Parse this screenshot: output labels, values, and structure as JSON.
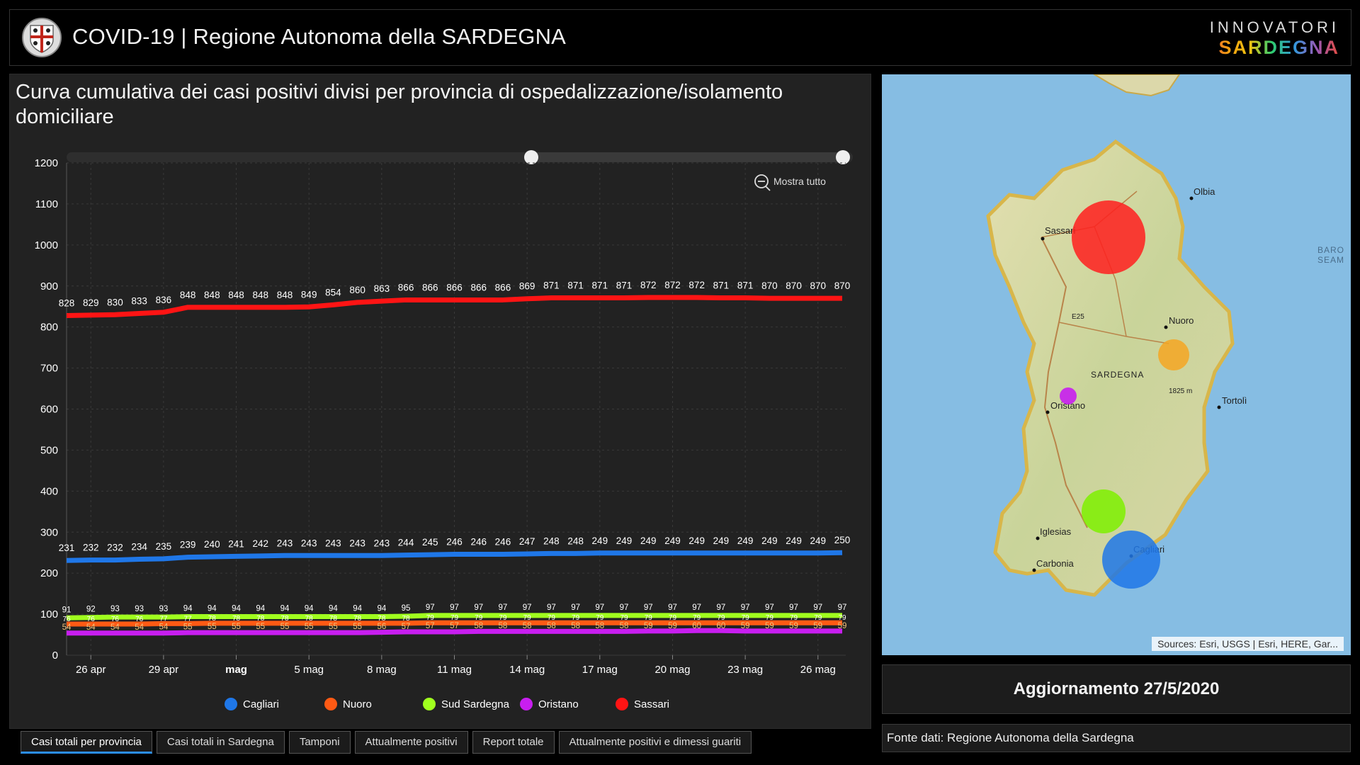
{
  "header": {
    "title": "COVID-19 | Regione Autonoma della SARDEGNA",
    "brand_top": "INNOVATORI",
    "brand_bottom": "SARDEGNA"
  },
  "chart": {
    "title": "Curva cumulativa dei casi positivi divisi per provincia di ospedalizzazione/isolamento domiciliare",
    "zoom_label": "Mostra tutto"
  },
  "chart_data": {
    "type": "line",
    "x": [
      "25 apr",
      "26 apr",
      "27 apr",
      "28 apr",
      "29 apr",
      "30 apr",
      "1 mag",
      "2 mag",
      "3 mag",
      "4 mag",
      "5 mag",
      "6 mag",
      "7 mag",
      "8 mag",
      "9 mag",
      "10 mag",
      "11 mag",
      "12 mag",
      "13 mag",
      "14 mag",
      "15 mag",
      "16 mag",
      "17 mag",
      "18 mag",
      "19 mag",
      "20 mag",
      "21 mag",
      "22 mag",
      "23 mag",
      "24 mag",
      "25 mag",
      "26 mag",
      "27 mag"
    ],
    "x_ticks": [
      {
        "date": "26 apr",
        "label": "26 apr",
        "bold": false
      },
      {
        "date": "29 apr",
        "label": "29 apr",
        "bold": false
      },
      {
        "date": "2 mag",
        "label": "mag",
        "bold": true
      },
      {
        "date": "5 mag",
        "label": "5 mag",
        "bold": false
      },
      {
        "date": "8 mag",
        "label": "8 mag",
        "bold": false
      },
      {
        "date": "11 mag",
        "label": "11 mag",
        "bold": false
      },
      {
        "date": "14 mag",
        "label": "14 mag",
        "bold": false
      },
      {
        "date": "17 mag",
        "label": "17 mag",
        "bold": false
      },
      {
        "date": "20 mag",
        "label": "20 mag",
        "bold": false
      },
      {
        "date": "23 mag",
        "label": "23 mag",
        "bold": false
      },
      {
        "date": "26 mag",
        "label": "26 mag",
        "bold": false
      }
    ],
    "yticks": [
      0,
      100,
      200,
      300,
      400,
      500,
      600,
      700,
      800,
      900,
      1000,
      1100,
      1200
    ],
    "ylim": [
      0,
      1200
    ],
    "grid": true,
    "legend_position": "bottom",
    "series": [
      {
        "name": "Cagliari",
        "color": "#1f77e8",
        "values": [
          231,
          232,
          232,
          234,
          235,
          239,
          240,
          241,
          242,
          243,
          243,
          243,
          243,
          243,
          244,
          245,
          246,
          246,
          246,
          247,
          248,
          248,
          249,
          249,
          249,
          249,
          249,
          249,
          249,
          249,
          249,
          249,
          250
        ]
      },
      {
        "name": "Nuoro",
        "color": "#ff5a14",
        "values": [
          76,
          76,
          76,
          76,
          77,
          77,
          78,
          78,
          78,
          78,
          78,
          78,
          78,
          78,
          78,
          79,
          79,
          79,
          79,
          79,
          79,
          79,
          79,
          79,
          79,
          79,
          79,
          79,
          79,
          79,
          79,
          79,
          79
        ]
      },
      {
        "name": "Sud Sardegna",
        "color": "#a0ff1e",
        "values": [
          91,
          92,
          93,
          93,
          93,
          94,
          94,
          94,
          94,
          94,
          94,
          94,
          94,
          94,
          95,
          97,
          97,
          97,
          97,
          97,
          97,
          97,
          97,
          97,
          97,
          97,
          97,
          97,
          97,
          97,
          97,
          97,
          97
        ]
      },
      {
        "name": "Oristano",
        "color": "#c81ef0",
        "values": [
          54,
          54,
          54,
          54,
          54,
          55,
          55,
          55,
          55,
          55,
          55,
          55,
          55,
          56,
          57,
          57,
          57,
          58,
          58,
          58,
          58,
          58,
          58,
          58,
          59,
          59,
          60,
          60,
          59,
          59,
          59,
          59,
          59
        ]
      },
      {
        "name": "Sassari",
        "color": "#ff1414",
        "values": [
          828,
          829,
          830,
          833,
          836,
          848,
          848,
          848,
          848,
          848,
          849,
          854,
          860,
          863,
          866,
          866,
          866,
          866,
          866,
          869,
          871,
          871,
          871,
          871,
          872,
          872,
          872,
          871,
          871,
          870,
          870,
          870,
          870
        ]
      }
    ]
  },
  "legend": [
    {
      "name": "Cagliari",
      "color": "#1f77e8"
    },
    {
      "name": "Nuoro",
      "color": "#ff5a14"
    },
    {
      "name": "Sud Sardegna",
      "color": "#a0ff1e"
    },
    {
      "name": "Oristano",
      "color": "#c81ef0"
    },
    {
      "name": "Sassari",
      "color": "#ff1414"
    }
  ],
  "tabs": [
    {
      "label": "Casi totali per provincia",
      "active": true
    },
    {
      "label": "Casi totali in Sardegna",
      "active": false
    },
    {
      "label": "Tamponi",
      "active": false
    },
    {
      "label": "Attualmente positivi",
      "active": false
    },
    {
      "label": "Report totale",
      "active": false
    },
    {
      "label": "Attualmente positivi e dimessi guariti",
      "active": false
    }
  ],
  "map": {
    "places": [
      "Olbia",
      "Sassari",
      "Nuoro",
      "SARDEGNA",
      "1825 m",
      "Oristano",
      "Tortolì",
      "Iglesias",
      "Cagliari",
      "Carbonia",
      "E25",
      "BARO",
      "SEAM"
    ],
    "attribution": "Sources: Esri, USGS | Esri, HERE, Gar...",
    "bubbles": [
      {
        "name": "Sassari",
        "color": "#ff1e1e",
        "value": 870
      },
      {
        "name": "Nuoro",
        "color": "#f5a623",
        "value": 79
      },
      {
        "name": "Oristano",
        "color": "#c81ef0",
        "value": 59
      },
      {
        "name": "Sud Sardegna",
        "color": "#7ef000",
        "value": 97
      },
      {
        "name": "Cagliari",
        "color": "#1f77e8",
        "value": 250
      }
    ]
  },
  "update": {
    "text": "Aggiornamento 27/5/2020"
  },
  "source": {
    "text": "Fonte dati: Regione Autonoma della Sardegna"
  }
}
